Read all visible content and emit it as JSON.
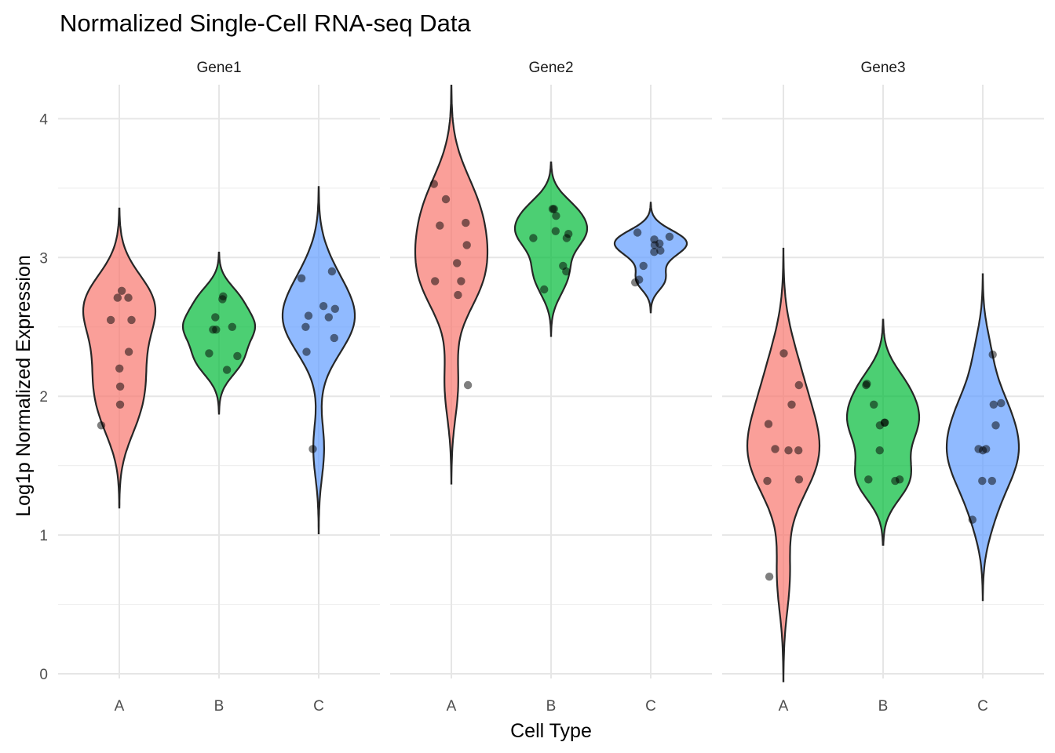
{
  "chart_data": {
    "type": "violin",
    "title": "Normalized Single-Cell RNA-seq Data",
    "xlabel": "Cell Type",
    "ylabel": "Log1p Normalized Expression",
    "ylim": [
      0,
      4.2
    ],
    "y_ticks": [
      "0",
      "1",
      "2",
      "3",
      "4"
    ],
    "y_tick_values": [
      0,
      1,
      2,
      3,
      4
    ],
    "y_minor_values": [
      0.5,
      1.5,
      2.5,
      3.5
    ],
    "categories": [
      "A",
      "B",
      "C"
    ],
    "grid": true,
    "legend": "none",
    "colors": {
      "A": "#F8766D",
      "B": "#00BA38",
      "C": "#619CFF"
    },
    "facets": [
      {
        "name": "Gene1",
        "groups": [
          {
            "category": "A",
            "values": [
              2.71,
              2.76,
              2.71,
              2.55,
              2.55,
              2.32,
              2.2,
              2.07,
              1.94,
              1.79
            ]
          },
          {
            "category": "B",
            "values": [
              2.7,
              2.72,
              2.57,
              2.5,
              2.48,
              2.48,
              2.31,
              2.29,
              2.19
            ]
          },
          {
            "category": "C",
            "values": [
              2.9,
              2.85,
              2.65,
              2.63,
              2.58,
              2.57,
              2.5,
              2.42,
              2.32,
              1.62
            ]
          }
        ]
      },
      {
        "name": "Gene2",
        "groups": [
          {
            "category": "A",
            "values": [
              3.53,
              3.42,
              3.25,
              3.23,
              3.09,
              2.96,
              2.83,
              2.83,
              2.73,
              2.08
            ]
          },
          {
            "category": "B",
            "values": [
              3.35,
              3.35,
              3.3,
              3.19,
              3.17,
              3.14,
              3.14,
              2.94,
              2.9,
              2.77
            ]
          },
          {
            "category": "C",
            "values": [
              3.18,
              3.15,
              3.13,
              3.1,
              3.09,
              3.05,
              3.04,
              2.94,
              2.84,
              2.82
            ]
          }
        ]
      },
      {
        "name": "Gene3",
        "groups": [
          {
            "category": "A",
            "values": [
              2.31,
              2.08,
              1.94,
              1.8,
              1.62,
              1.61,
              1.61,
              1.4,
              1.39,
              0.7
            ]
          },
          {
            "category": "B",
            "values": [
              2.09,
              2.08,
              1.94,
              1.81,
              1.81,
              1.79,
              1.61,
              1.4,
              1.4,
              1.39
            ]
          },
          {
            "category": "C",
            "values": [
              2.3,
              1.95,
              1.94,
              1.79,
              1.62,
              1.62,
              1.61,
              1.39,
              1.39,
              1.11
            ]
          }
        ]
      }
    ]
  }
}
